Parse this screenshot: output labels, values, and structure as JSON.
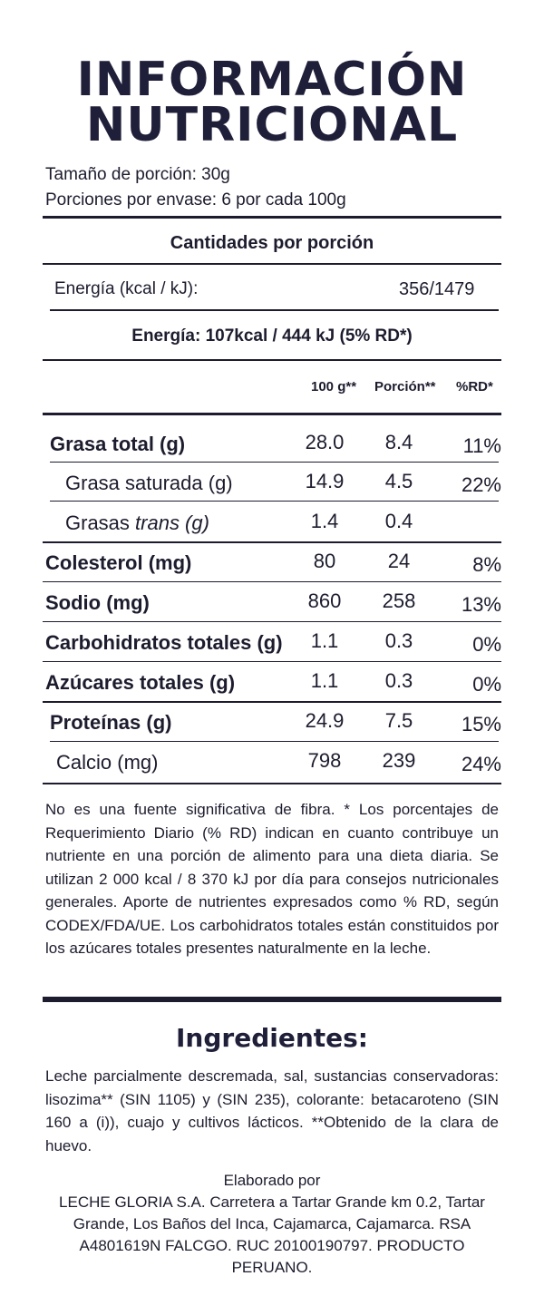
{
  "header": {
    "title_line1": "INFORMACIÓN",
    "title_line2": "NUTRICIONAL"
  },
  "serving": {
    "size": "Tamaño de porción: 30g",
    "per_container": "Porciones por envase: 6 por cada 100g"
  },
  "amounts_heading": "Cantidades por porción",
  "energy_100g": {
    "label": "Energía (kcal / kJ):",
    "value": "356/1479"
  },
  "energy_portion": "Energía: 107kcal / 444 kJ (5% RD*)",
  "columns": {
    "per100": "100 g**",
    "portion": "Porción**",
    "rd": "%RD*"
  },
  "nutrients": [
    {
      "label": "Grasa total (g)",
      "per100": "28.0",
      "portion": "8.4",
      "rd": "11%"
    },
    {
      "label": "Grasa saturada (g)",
      "per100": "14.9",
      "portion": "4.5",
      "rd": "22%"
    },
    {
      "label_prefix": "Grasas ",
      "label_italic": "trans (g)",
      "per100": "1.4",
      "portion": "0.4",
      "rd": ""
    },
    {
      "label": "Colesterol (mg)",
      "per100": "80",
      "portion": "24",
      "rd": "8%"
    },
    {
      "label": "Sodio (mg)",
      "per100": "860",
      "portion": "258",
      "rd": "13%"
    },
    {
      "label": "Carbohidratos totales (g)",
      "per100": "1.1",
      "portion": "0.3",
      "rd": "0%"
    },
    {
      "label": "Azúcares totales (g)",
      "per100": "1.1",
      "portion": "0.3",
      "rd": "0%"
    },
    {
      "label": "Proteínas (g)",
      "per100": "24.9",
      "portion": "7.5",
      "rd": "15%"
    },
    {
      "label": "Calcio (mg)",
      "per100": "798",
      "portion": "239",
      "rd": "24%"
    }
  ],
  "footnote": "No es una fuente significativa de fibra. * Los porcentajes de Requerimiento Diario (% RD) indican en cuanto contribuye un nutriente en una porción de alimento para una dieta diaria. Se utilizan 2 000 kcal / 8 370 kJ por día para consejos nutricionales generales. Aporte de nutrientes expresados como % RD, según CODEX/FDA/UE. Los carbohidratos totales están constituidos por los azúcares totales presentes naturalmente en la leche.",
  "ingredients": {
    "title": "Ingredientes:",
    "text": "Leche parcialmente descremada, sal, sustancias conservadoras: lisozima** (SIN 1105) y (SIN 235), colorante: betacaroteno (SIN 160 a (i)), cuajo y cultivos lácticos. **Obtenido de la clara de huevo."
  },
  "manufacturer": {
    "heading": "Elaborado por",
    "text": "LECHE GLORIA S.A. Carretera a Tartar Grande km 0.2, Tartar Grande, Los Baños del Inca, Cajamarca, Cajamarca. RSA A4801619N FALCGO. RUC 20100190797. PRODUCTO PERUANO."
  },
  "colors": {
    "ink": "#1c1c2e",
    "title": "#1f1f3a"
  }
}
